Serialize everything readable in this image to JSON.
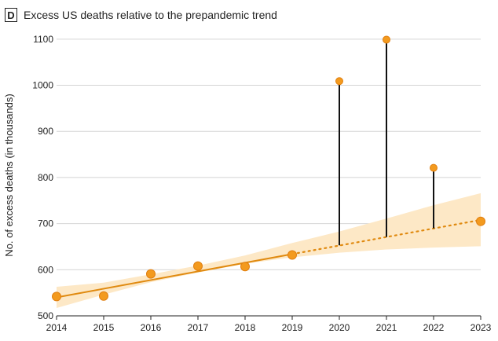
{
  "panel_label": "D",
  "chart_data": {
    "type": "line",
    "title": "Excess US deaths relative to the prepandemic trend",
    "xlabel": "",
    "ylabel": "No. of excess deaths (in thousands)",
    "x_ticks": [
      2014,
      2015,
      2016,
      2017,
      2018,
      2019,
      2020,
      2021,
      2022,
      2023
    ],
    "y_ticks": [
      500,
      600,
      700,
      800,
      900,
      1000,
      1100
    ],
    "xlim": [
      2014,
      2023
    ],
    "ylim": [
      500,
      1110
    ],
    "grid": "horizontal",
    "observed": {
      "x": [
        2014,
        2015,
        2016,
        2017,
        2018,
        2019,
        2020,
        2021,
        2022,
        2023
      ],
      "y": [
        542,
        543,
        591,
        608,
        607,
        632,
        1009,
        1099,
        821,
        705
      ]
    },
    "trend": {
      "fitted_x": [
        2014,
        2019
      ],
      "fitted_y": [
        540,
        634
      ],
      "projected_x": [
        2019,
        2023
      ],
      "projected_y": [
        634,
        708
      ],
      "band_x": [
        2014,
        2015,
        2016,
        2017,
        2018,
        2019,
        2020,
        2021,
        2022,
        2023
      ],
      "band_lower": [
        517,
        546,
        573,
        594,
        613,
        627,
        637,
        644,
        648,
        651
      ],
      "band_upper": [
        563,
        572,
        590,
        609,
        631,
        658,
        683,
        711,
        740,
        766
      ]
    },
    "excess_segments": [
      {
        "x": 2020,
        "from": 653,
        "to": 1009
      },
      {
        "x": 2021,
        "from": 671,
        "to": 1099
      },
      {
        "x": 2022,
        "from": 690,
        "to": 821
      }
    ],
    "colors": {
      "points": "#f39a1e",
      "point_edge": "#e07f10",
      "trend_line": "#e08a10",
      "band": "#fde8c6",
      "excess_line": "#111111",
      "grid": "#d4d4d4"
    }
  }
}
